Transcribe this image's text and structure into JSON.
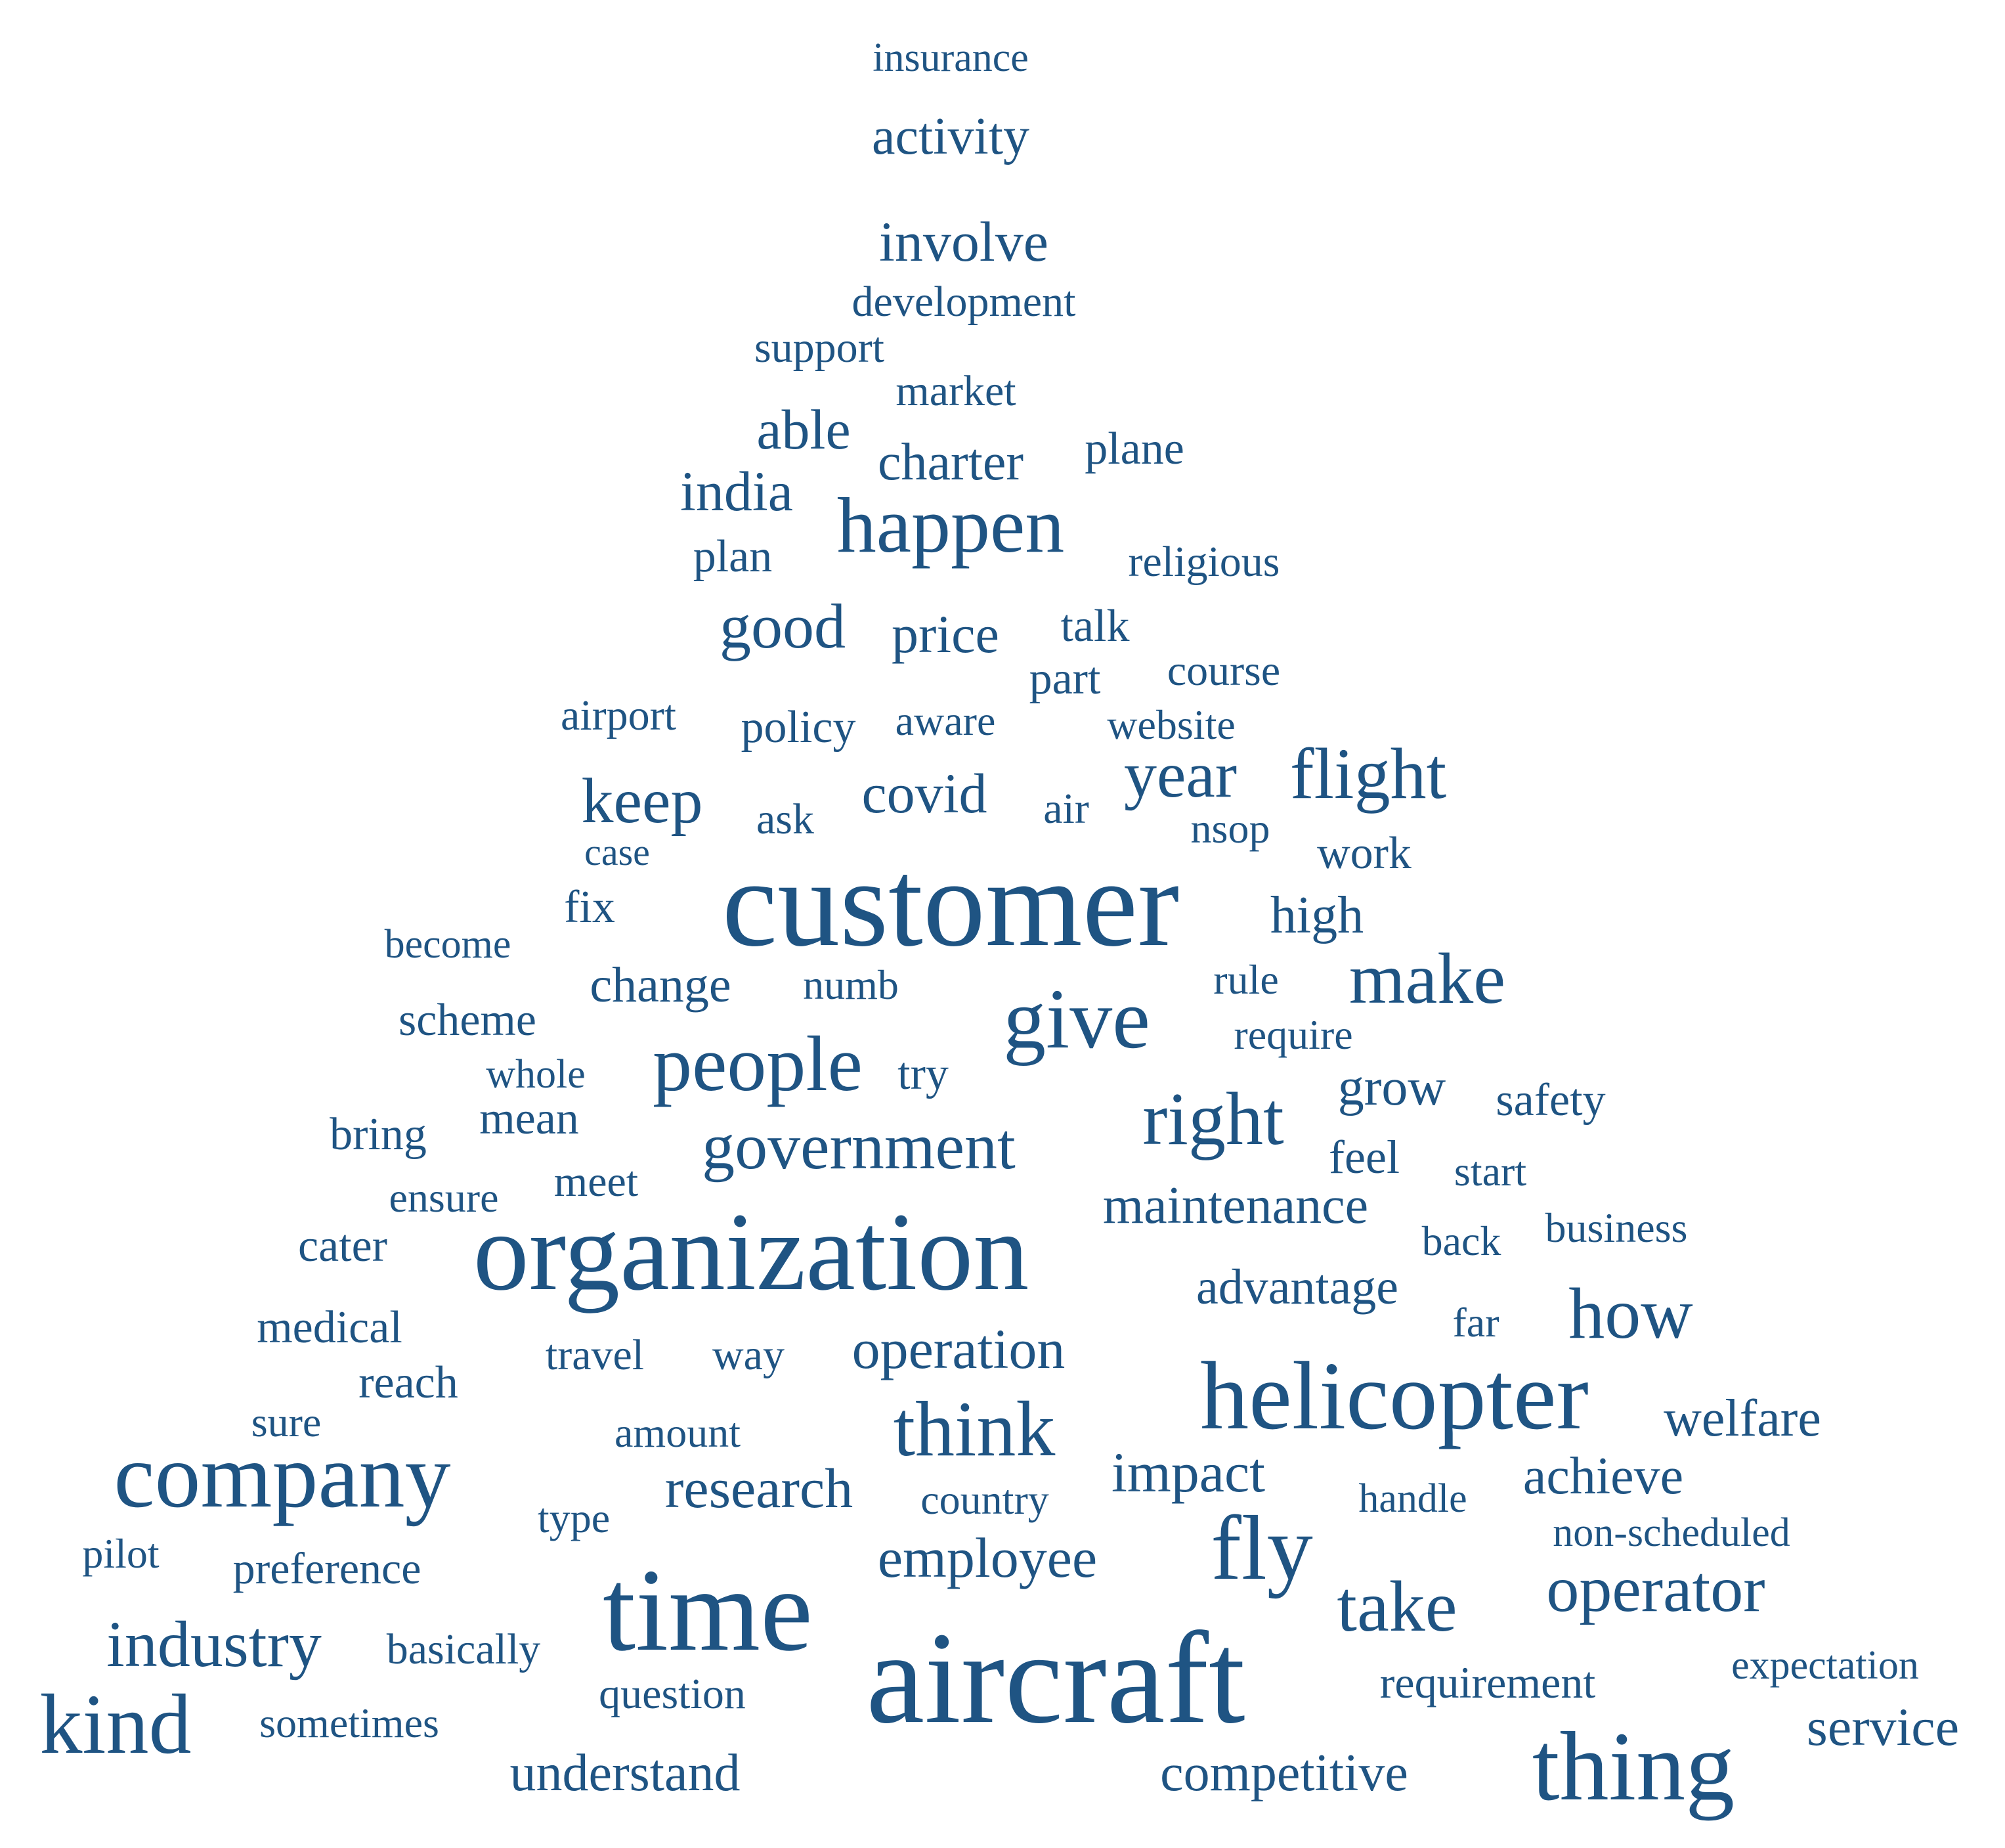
{
  "colors": {
    "background": "#ffffff",
    "word": "#1f5483"
  },
  "words": [
    {
      "text": "insurance",
      "weight": 1
    },
    {
      "text": "activity",
      "weight": 2
    },
    {
      "text": "involve",
      "weight": 2
    },
    {
      "text": "development",
      "weight": 1
    },
    {
      "text": "support",
      "weight": 1
    },
    {
      "text": "market",
      "weight": 1
    },
    {
      "text": "able",
      "weight": 2
    },
    {
      "text": "charter",
      "weight": 2
    },
    {
      "text": "plane",
      "weight": 1
    },
    {
      "text": "india",
      "weight": 2
    },
    {
      "text": "happen",
      "weight": 4
    },
    {
      "text": "plan",
      "weight": 1
    },
    {
      "text": "religious",
      "weight": 1
    },
    {
      "text": "good",
      "weight": 2
    },
    {
      "text": "price",
      "weight": 2
    },
    {
      "text": "talk",
      "weight": 1
    },
    {
      "text": "part",
      "weight": 1
    },
    {
      "text": "course",
      "weight": 1
    },
    {
      "text": "airport",
      "weight": 1
    },
    {
      "text": "policy",
      "weight": 1
    },
    {
      "text": "aware",
      "weight": 1
    },
    {
      "text": "website",
      "weight": 1
    },
    {
      "text": "keep",
      "weight": 3
    },
    {
      "text": "covid",
      "weight": 2
    },
    {
      "text": "year",
      "weight": 3
    },
    {
      "text": "flight",
      "weight": 3
    },
    {
      "text": "ask",
      "weight": 1
    },
    {
      "text": "air",
      "weight": 1
    },
    {
      "text": "nsop",
      "weight": 1
    },
    {
      "text": "case",
      "weight": 1
    },
    {
      "text": "work",
      "weight": 1
    },
    {
      "text": "customer",
      "weight": 6
    },
    {
      "text": "fix",
      "weight": 1
    },
    {
      "text": "high",
      "weight": 2
    },
    {
      "text": "become",
      "weight": 1
    },
    {
      "text": "change",
      "weight": 2
    },
    {
      "text": "numb",
      "weight": 1
    },
    {
      "text": "rule",
      "weight": 1
    },
    {
      "text": "make",
      "weight": 3
    },
    {
      "text": "scheme",
      "weight": 1
    },
    {
      "text": "give",
      "weight": 4
    },
    {
      "text": "require",
      "weight": 1
    },
    {
      "text": "people",
      "weight": 4
    },
    {
      "text": "whole",
      "weight": 1
    },
    {
      "text": "try",
      "weight": 1
    },
    {
      "text": "grow",
      "weight": 2
    },
    {
      "text": "safety",
      "weight": 1
    },
    {
      "text": "bring",
      "weight": 1
    },
    {
      "text": "mean",
      "weight": 1
    },
    {
      "text": "right",
      "weight": 3
    },
    {
      "text": "government",
      "weight": 3
    },
    {
      "text": "feel",
      "weight": 1
    },
    {
      "text": "start",
      "weight": 1
    },
    {
      "text": "ensure",
      "weight": 1
    },
    {
      "text": "meet",
      "weight": 1
    },
    {
      "text": "maintenance",
      "weight": 2
    },
    {
      "text": "business",
      "weight": 1
    },
    {
      "text": "back",
      "weight": 1
    },
    {
      "text": "cater",
      "weight": 1
    },
    {
      "text": "organization",
      "weight": 6
    },
    {
      "text": "advantage",
      "weight": 2
    },
    {
      "text": "far",
      "weight": 1
    },
    {
      "text": "how",
      "weight": 3
    },
    {
      "text": "medical",
      "weight": 1
    },
    {
      "text": "travel",
      "weight": 1
    },
    {
      "text": "way",
      "weight": 1
    },
    {
      "text": "operation",
      "weight": 2
    },
    {
      "text": "reach",
      "weight": 1
    },
    {
      "text": "helicopter",
      "weight": 5
    },
    {
      "text": "sure",
      "weight": 1
    },
    {
      "text": "welfare",
      "weight": 2
    },
    {
      "text": "amount",
      "weight": 1
    },
    {
      "text": "think",
      "weight": 3
    },
    {
      "text": "company",
      "weight": 5
    },
    {
      "text": "impact",
      "weight": 2
    },
    {
      "text": "achieve",
      "weight": 2
    },
    {
      "text": "research",
      "weight": 2
    },
    {
      "text": "country",
      "weight": 1
    },
    {
      "text": "handle",
      "weight": 1
    },
    {
      "text": "type",
      "weight": 1
    },
    {
      "text": "fly",
      "weight": 4
    },
    {
      "text": "non-scheduled",
      "weight": 1
    },
    {
      "text": "pilot",
      "weight": 1
    },
    {
      "text": "preference",
      "weight": 1
    },
    {
      "text": "employee",
      "weight": 2
    },
    {
      "text": "time",
      "weight": 5
    },
    {
      "text": "take",
      "weight": 3
    },
    {
      "text": "operator",
      "weight": 3
    },
    {
      "text": "industry",
      "weight": 3
    },
    {
      "text": "basically",
      "weight": 1
    },
    {
      "text": "aircraft",
      "weight": 6
    },
    {
      "text": "expectation",
      "weight": 1
    },
    {
      "text": "requirement",
      "weight": 1
    },
    {
      "text": "question",
      "weight": 1
    },
    {
      "text": "kind",
      "weight": 4
    },
    {
      "text": "sometimes",
      "weight": 1
    },
    {
      "text": "service",
      "weight": 2
    },
    {
      "text": "understand",
      "weight": 2
    },
    {
      "text": "competitive",
      "weight": 2
    },
    {
      "text": "thing",
      "weight": 5
    }
  ]
}
